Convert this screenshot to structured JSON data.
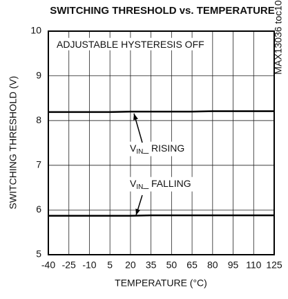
{
  "chart_data": {
    "type": "line",
    "title": "SWITCHING THRESHOLD vs. TEMPERATURE",
    "xlabel": "TEMPERATURE (°C)",
    "ylabel": "SWITCHING THRESHOLD (V)",
    "watermark": "MAX13036 toc10",
    "annotations": [
      {
        "text": "ADJUSTABLE HYSTERESIS OFF"
      },
      {
        "text": "V",
        "subscript": "IN",
        "suffix": "_ RISING"
      },
      {
        "text": "V",
        "subscript": "IN",
        "suffix": "_ FALLING"
      }
    ],
    "x": [
      -40,
      -25,
      -10,
      5,
      20,
      35,
      50,
      65,
      80,
      95,
      110,
      125
    ],
    "series": [
      {
        "color": "#000000",
        "values": [
          8.19,
          8.19,
          8.19,
          8.19,
          8.2,
          8.2,
          8.2,
          8.2,
          8.21,
          8.21,
          8.21,
          8.21
        ]
      },
      {
        "color": "#000000",
        "values": [
          5.87,
          5.87,
          5.87,
          5.87,
          5.87,
          5.88,
          5.88,
          5.88,
          5.88,
          5.88,
          5.88,
          5.88
        ]
      }
    ],
    "xlim": [
      -40,
      125
    ],
    "xticks": [
      -40,
      -25,
      -10,
      5,
      20,
      35,
      50,
      65,
      80,
      95,
      110,
      125
    ],
    "ylim": [
      5,
      10
    ],
    "yticks": [
      5,
      6,
      7,
      8,
      9,
      10
    ],
    "grid": true
  }
}
